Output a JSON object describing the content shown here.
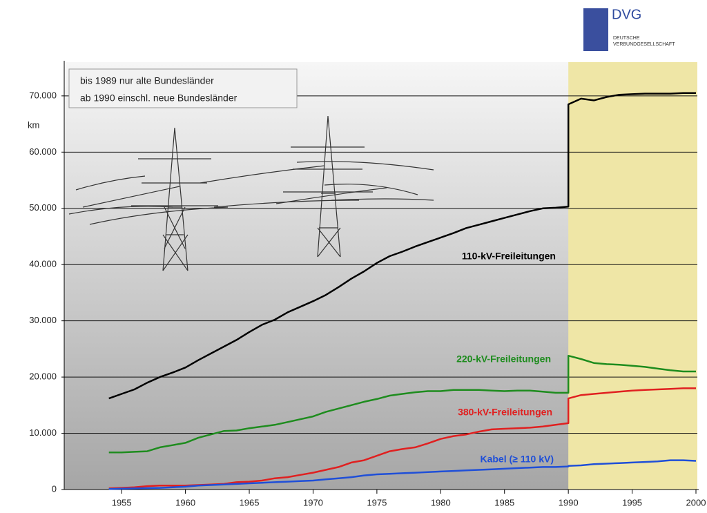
{
  "chart_data": {
    "type": "line",
    "notes": [
      "bis 1989 nur alte Bundesländer",
      "ab 1990 einschl. neue Bundesländer"
    ],
    "y_unit": "km",
    "logo": {
      "title": "DVG",
      "line1": "DEUTSCHE",
      "line2": "VERBUNDGESELLSCHAFT"
    },
    "x": [
      1954,
      1955,
      1956,
      1957,
      1958,
      1959,
      1960,
      1961,
      1962,
      1963,
      1964,
      1965,
      1966,
      1967,
      1968,
      1969,
      1970,
      1971,
      1972,
      1973,
      1974,
      1975,
      1976,
      1977,
      1978,
      1979,
      1980,
      1981,
      1982,
      1983,
      1984,
      1985,
      1986,
      1987,
      1988,
      1989,
      1990,
      1990,
      1991,
      1992,
      1993,
      1994,
      1995,
      1996,
      1997,
      1998,
      1999,
      2000
    ],
    "series": [
      {
        "name": "110-kV-Freileitungen",
        "color": "#000000",
        "values": [
          16200,
          17000,
          17800,
          19000,
          20000,
          20800,
          21700,
          23000,
          24200,
          25400,
          26600,
          28000,
          29300,
          30200,
          31500,
          32500,
          33500,
          34600,
          36000,
          37500,
          38800,
          40300,
          41500,
          42300,
          43200,
          44000,
          44800,
          45600,
          46500,
          47100,
          47700,
          48300,
          48900,
          49500,
          50000,
          50100,
          50300,
          68500,
          69500,
          69200,
          69800,
          70200,
          70300,
          70400,
          70400,
          70400,
          70500,
          70500
        ]
      },
      {
        "name": "220-kV-Freileitungen",
        "color": "#1e8c1e",
        "values": [
          6600,
          6600,
          6700,
          6800,
          7500,
          7900,
          8300,
          9200,
          9800,
          10400,
          10500,
          10900,
          11200,
          11500,
          12000,
          12500,
          13000,
          13800,
          14400,
          15000,
          15600,
          16100,
          16700,
          17000,
          17300,
          17500,
          17500,
          17700,
          17700,
          17700,
          17600,
          17500,
          17600,
          17600,
          17400,
          17200,
          17200,
          23800,
          23200,
          22500,
          22300,
          22200,
          22000,
          21800,
          21500,
          21200,
          21000,
          21000
        ]
      },
      {
        "name": "380-kV-Freileitungen",
        "color": "#e02020",
        "values": [
          200,
          300,
          400,
          600,
          700,
          700,
          700,
          800,
          900,
          1000,
          1300,
          1400,
          1600,
          2000,
          2200,
          2600,
          3000,
          3500,
          4000,
          4800,
          5200,
          6000,
          6800,
          7200,
          7500,
          8200,
          9000,
          9500,
          9800,
          10300,
          10700,
          10800,
          10900,
          11000,
          11200,
          11500,
          11800,
          16200,
          16800,
          17000,
          17200,
          17400,
          17600,
          17700,
          17800,
          17900,
          18000,
          18000
        ]
      },
      {
        "name": "Kabel (≥ 110 kV)",
        "color": "#1f4fd8",
        "values": [
          100,
          150,
          200,
          250,
          300,
          400,
          500,
          700,
          800,
          900,
          1000,
          1100,
          1200,
          1300,
          1400,
          1500,
          1600,
          1800,
          2000,
          2200,
          2500,
          2700,
          2800,
          2900,
          3000,
          3100,
          3200,
          3300,
          3400,
          3500,
          3600,
          3700,
          3800,
          3900,
          4000,
          4000,
          4100,
          4200,
          4300,
          4500,
          4600,
          4700,
          4800,
          4900,
          5000,
          5200,
          5200,
          5100
        ]
      }
    ],
    "highlight": {
      "from": 1990,
      "to": 2000,
      "color": "#efe6a6"
    },
    "xlim": [
      1950.5,
      2000
    ],
    "xticks": [
      1955,
      1960,
      1965,
      1970,
      1975,
      1980,
      1985,
      1990,
      1995,
      2000
    ],
    "ylim": [
      0,
      76000
    ],
    "yticks": [
      0,
      {
        "value": 10000,
        "label": "10.000"
      },
      {
        "value": 20000,
        "label": "20.000"
      },
      {
        "value": 30000,
        "label": "30.000"
      },
      {
        "value": 40000,
        "label": "40.000"
      },
      {
        "value": 50000,
        "label": "50.000"
      },
      {
        "value": 60000,
        "label": "60.000"
      },
      {
        "value": 70000,
        "label": "70.000"
      }
    ],
    "grid": true
  }
}
